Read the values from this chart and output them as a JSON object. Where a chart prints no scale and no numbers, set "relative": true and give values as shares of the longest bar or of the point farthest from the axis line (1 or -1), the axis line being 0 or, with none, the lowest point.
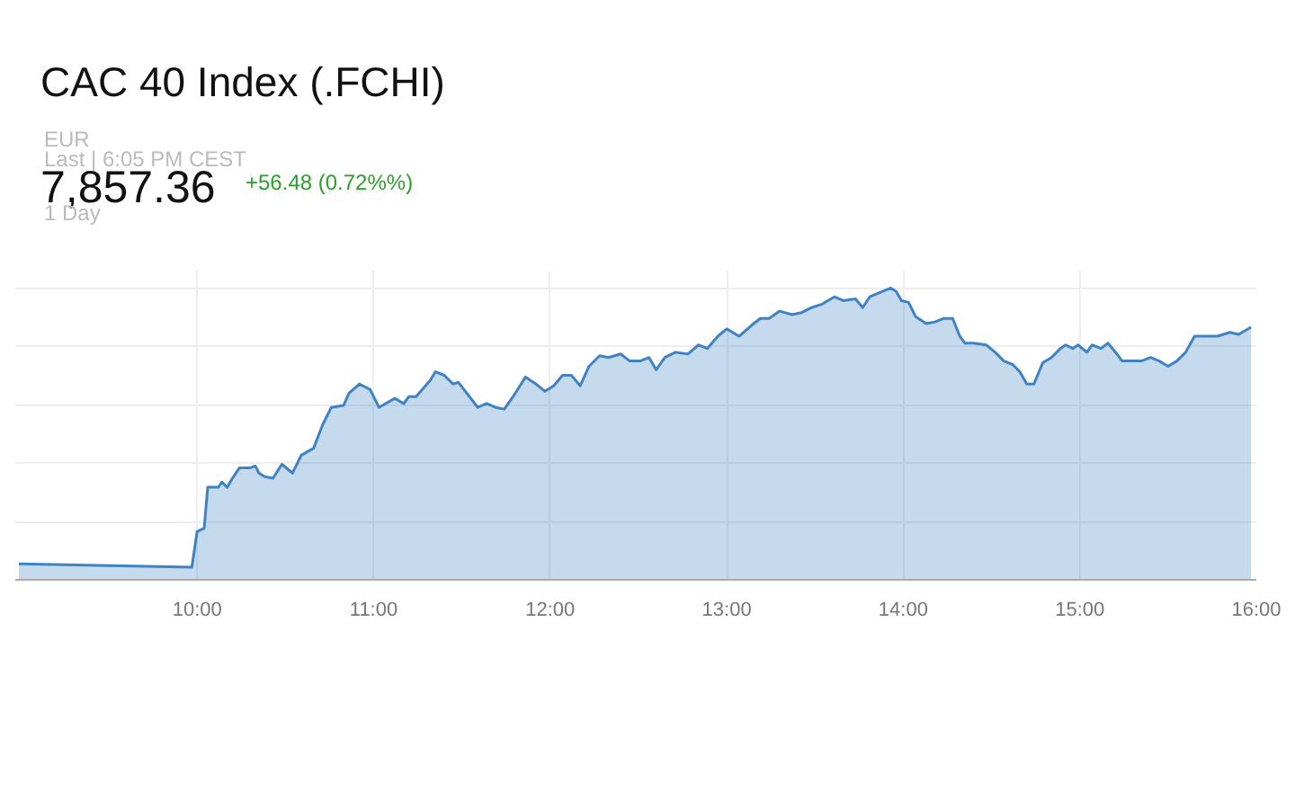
{
  "chart_data": {
    "type": "area",
    "title": "CAC 40 Index (.FCHI)",
    "annotations": [
      "EUR",
      "Last | 6:05 PM CEST",
      "7,857.36",
      "+56.48 (0.72%%)",
      "1 Day"
    ],
    "relative": true,
    "grid": true,
    "xlim": [
      8.97,
      16.0
    ],
    "xticks": [
      {
        "value": 10,
        "label": "10:00"
      },
      {
        "value": 11,
        "label": "11:00"
      },
      {
        "value": 12,
        "label": "12:00"
      },
      {
        "value": 13,
        "label": "13:00"
      },
      {
        "value": 14,
        "label": "14:00"
      },
      {
        "value": 15,
        "label": "15:00"
      },
      {
        "value": 16,
        "label": "16:00"
      }
    ],
    "x": [
      8.99,
      9.97,
      10.0,
      10.04,
      10.06,
      10.12,
      10.14,
      10.17,
      10.2,
      10.24,
      10.3,
      10.33,
      10.35,
      10.38,
      10.43,
      10.48,
      10.54,
      10.59,
      10.66,
      10.71,
      10.76,
      10.83,
      10.86,
      10.92,
      10.98,
      11.03,
      11.12,
      11.17,
      11.2,
      11.24,
      11.32,
      11.35,
      11.4,
      11.45,
      11.48,
      11.55,
      11.59,
      11.64,
      11.69,
      11.74,
      11.79,
      11.86,
      11.92,
      11.97,
      12.02,
      12.07,
      12.12,
      12.17,
      12.22,
      12.28,
      12.33,
      12.4,
      12.45,
      12.51,
      12.56,
      12.6,
      12.65,
      12.71,
      12.78,
      12.84,
      12.89,
      12.95,
      13.0,
      13.07,
      13.14,
      13.19,
      13.24,
      13.3,
      13.37,
      13.42,
      13.48,
      13.54,
      13.61,
      13.66,
      13.73,
      13.77,
      13.81,
      13.88,
      13.93,
      13.96,
      13.99,
      14.03,
      14.07,
      14.13,
      14.18,
      14.23,
      14.28,
      14.32,
      14.35,
      14.4,
      14.47,
      14.52,
      14.57,
      14.62,
      14.66,
      14.7,
      14.74,
      14.79,
      14.84,
      14.89,
      14.92,
      14.96,
      14.99,
      15.04,
      15.07,
      15.12,
      15.16,
      15.21,
      15.24,
      15.31,
      15.35,
      15.4,
      15.45,
      15.5,
      15.55,
      15.6,
      15.65,
      15.71,
      15.78,
      15.85,
      15.9,
      15.97
    ],
    "series": [
      {
        "color": "#3f83c4",
        "values": [
          0.055,
          0.043,
          0.165,
          0.177,
          0.317,
          0.317,
          0.335,
          0.317,
          0.348,
          0.384,
          0.384,
          0.39,
          0.366,
          0.354,
          0.348,
          0.396,
          0.366,
          0.427,
          0.451,
          0.53,
          0.591,
          0.598,
          0.64,
          0.671,
          0.652,
          0.591,
          0.622,
          0.604,
          0.628,
          0.628,
          0.683,
          0.713,
          0.701,
          0.671,
          0.677,
          0.622,
          0.591,
          0.604,
          0.591,
          0.585,
          0.628,
          0.695,
          0.671,
          0.646,
          0.665,
          0.701,
          0.701,
          0.665,
          0.732,
          0.768,
          0.762,
          0.774,
          0.75,
          0.75,
          0.762,
          0.72,
          0.762,
          0.78,
          0.774,
          0.805,
          0.793,
          0.835,
          0.86,
          0.835,
          0.872,
          0.896,
          0.896,
          0.921,
          0.909,
          0.915,
          0.933,
          0.945,
          0.97,
          0.957,
          0.963,
          0.933,
          0.97,
          0.988,
          1.0,
          0.988,
          0.957,
          0.951,
          0.902,
          0.878,
          0.884,
          0.896,
          0.896,
          0.835,
          0.811,
          0.811,
          0.805,
          0.78,
          0.75,
          0.738,
          0.713,
          0.671,
          0.671,
          0.744,
          0.762,
          0.793,
          0.805,
          0.793,
          0.805,
          0.78,
          0.805,
          0.793,
          0.811,
          0.774,
          0.75,
          0.75,
          0.75,
          0.762,
          0.75,
          0.732,
          0.75,
          0.78,
          0.835,
          0.835,
          0.835,
          0.848,
          0.841,
          0.866
        ]
      }
    ]
  }
}
